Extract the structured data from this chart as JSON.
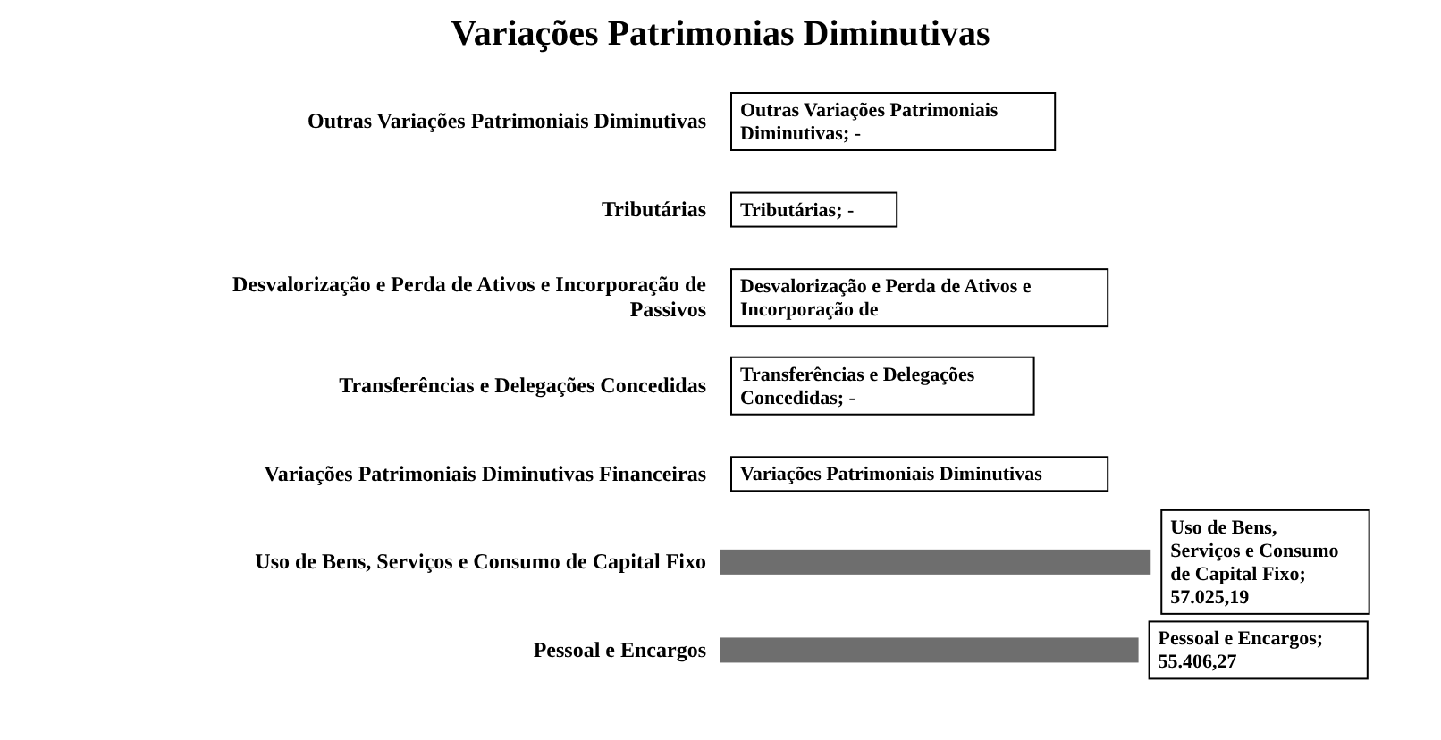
{
  "chart_data": {
    "type": "bar",
    "orientation": "horizontal",
    "title": "Variações Patrimonias Diminutivas",
    "categories": [
      "Outras Variações Patrimoniais Diminutivas",
      "Tributárias",
      "Desvalorização e Perda de Ativos e Incorporação de Passivos",
      "Transferências e Delegações Concedidas",
      "Variações Patrimoniais Diminutivas Financeiras",
      "Uso de Bens, Serviços e Consumo de Capital Fixo",
      "Pessoal e Encargos"
    ],
    "values": [
      0,
      0,
      0,
      0,
      0,
      57025.19,
      55406.27
    ],
    "colors": [
      "#111111",
      "#111111",
      "#111111",
      "#111111",
      "#111111",
      "#6e6e6e",
      "#6e6e6e"
    ],
    "value_labels": [
      "Outras Variações Patrimoniais Diminutivas; -",
      "Tributárias; -",
      "Desvalorização e Perda de Ativos e Incorporação de",
      "Transferências e Delegações Concedidas; -",
      "Variações Patrimoniais Diminutivas",
      "Uso de Bens, Serviços e Consumo de Capital Fixo; 57.025,19",
      "Pessoal e Encargos; 55.406,27"
    ]
  }
}
